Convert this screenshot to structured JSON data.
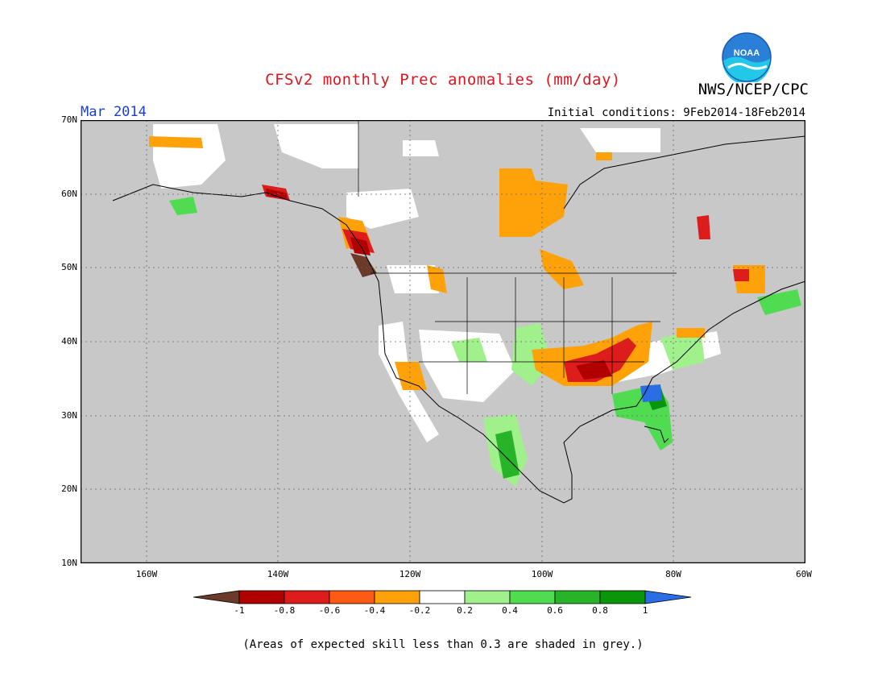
{
  "title": "CFSv2 monthly Prec anomalies (mm/day)",
  "org": "NWS/NCEP/CPC",
  "logo_text": "NOAA",
  "month": "Mar 2014",
  "initial_conditions": "Initial conditions: 9Feb2014-18Feb2014",
  "lat_labels": [
    "70N",
    "60N",
    "50N",
    "40N",
    "30N",
    "20N",
    "10N"
  ],
  "lon_labels": [
    "160W",
    "140W",
    "120W",
    "100W",
    "80W",
    "60W"
  ],
  "colorbar": {
    "labels": [
      "-1",
      "-0.8",
      "-0.6",
      "-0.4",
      "-0.2",
      "0.2",
      "0.4",
      "0.6",
      "0.8",
      "1"
    ],
    "colors": [
      "#6b3a2a",
      "#b00000",
      "#dd1c1c",
      "#ff5a14",
      "#ffa20a",
      "#ffffff",
      "#a0f08c",
      "#50dc50",
      "#28b428",
      "#0a960a",
      "#2a6ee6"
    ]
  },
  "note": "(Areas of expected skill less than 0.3 are shaded in grey.)",
  "map_colors": {
    "grey": "#c8c8c8",
    "white": "#ffffff"
  }
}
